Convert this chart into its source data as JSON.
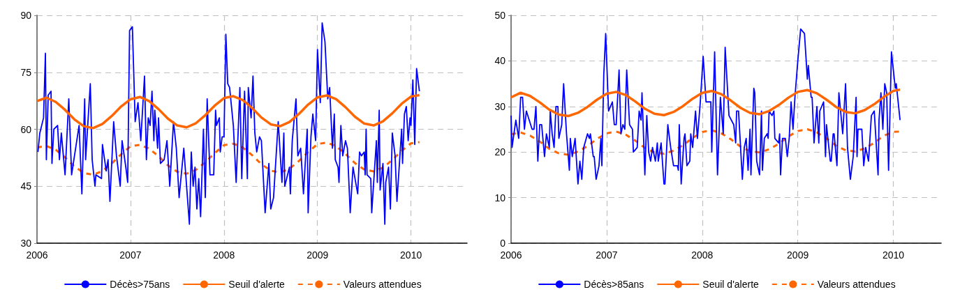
{
  "chart_data": [
    {
      "type": "line",
      "xlim": [
        2006,
        2010.6
      ],
      "xticks": [
        2006,
        2007,
        2008,
        2009,
        2010
      ],
      "ylim": [
        30,
        90
      ],
      "yticks": [
        30,
        45,
        60,
        75,
        90
      ],
      "grid": true,
      "legend": "bottom",
      "marker": "none",
      "series": [
        {
          "name": "Décès>75ans",
          "color": "#0000ff",
          "line_style": "solid",
          "x": [
            2006.01,
            2006.03,
            2006.07,
            2006.09,
            2006.1,
            2006.12,
            2006.15,
            2006.16,
            2006.18,
            2006.22,
            2006.24,
            2006.26,
            2006.3,
            2006.34,
            2006.37,
            2006.45,
            2006.48,
            2006.51,
            2006.52,
            2006.57,
            2006.59,
            2006.62,
            2006.63,
            2006.69,
            2006.7,
            2006.74,
            2006.76,
            2006.78,
            2006.82,
            2006.85,
            2006.89,
            2006.91,
            2006.95,
            2006.97,
            2006.99,
            2007.02,
            2007.05,
            2007.08,
            2007.11,
            2007.15,
            2007.17,
            2007.19,
            2007.21,
            2007.23,
            2007.25,
            2007.26,
            2007.29,
            2007.3,
            2007.32,
            2007.36,
            2007.39,
            2007.42,
            2007.46,
            2007.49,
            2007.52,
            2007.57,
            2007.63,
            2007.65,
            2007.67,
            2007.69,
            2007.71,
            2007.73,
            2007.75,
            2007.78,
            2007.8,
            2007.82,
            2007.85,
            2007.89,
            2007.91,
            2007.92,
            2007.95,
            2007.96,
            2007.98,
            2008.0,
            2008.02,
            2008.04,
            2008.06,
            2008.1,
            2008.13,
            2008.17,
            2008.19,
            2008.22,
            2008.25,
            2008.26,
            2008.29,
            2008.31,
            2008.33,
            2008.35,
            2008.38,
            2008.4,
            2008.44,
            2008.48,
            2008.5,
            2008.53,
            2008.58,
            2008.62,
            2008.64,
            2008.65,
            2008.7,
            2008.71,
            2008.73,
            2008.77,
            2008.79,
            2008.82,
            2008.85,
            2008.89,
            2008.9,
            2008.93,
            2008.95,
            2008.98,
            2009.0,
            2009.03,
            2009.05,
            2009.08,
            2009.11,
            2009.13,
            2009.16,
            2009.18,
            2009.19,
            2009.22,
            2009.23,
            2009.25,
            2009.27,
            2009.3,
            2009.32,
            2009.35,
            2009.38,
            2009.43,
            2009.45,
            2009.47,
            2009.5,
            2009.51,
            2009.52,
            2009.53,
            2009.57,
            2009.58,
            2009.63,
            2009.64,
            2009.66,
            2009.67,
            2009.7,
            2009.72,
            2009.73,
            2009.76,
            2009.78,
            2009.8,
            2009.83,
            2009.85,
            2009.9,
            2009.91,
            2009.93,
            2009.95,
            2009.97,
            2009.99,
            2010.0,
            2010.02,
            2010.04,
            2010.06,
            2010.09
          ],
          "values": [
            54,
            59,
            63,
            80,
            52,
            69,
            70,
            51,
            60,
            61,
            52,
            59,
            48,
            68,
            48,
            61,
            43,
            68,
            52,
            72,
            52,
            45,
            48,
            47,
            56,
            49,
            52,
            41,
            62,
            53,
            45,
            57,
            50,
            46,
            86,
            87,
            62,
            67,
            57,
            74,
            52,
            63,
            61,
            70,
            57,
            65,
            55,
            63,
            51,
            52,
            57,
            45,
            62,
            55,
            42,
            55,
            35,
            54,
            45,
            50,
            39,
            47,
            37,
            60,
            42,
            68,
            48,
            48,
            65,
            61,
            63,
            54,
            58,
            58,
            85,
            72,
            71,
            61,
            46,
            71,
            47,
            70,
            47,
            71,
            63,
            74,
            59,
            54,
            58,
            57,
            38,
            51,
            39,
            42,
            62,
            46,
            59,
            45,
            50,
            43,
            57,
            68,
            53,
            55,
            43,
            60,
            38,
            58,
            64,
            57,
            81,
            67,
            88,
            83,
            68,
            71,
            55,
            64,
            52,
            50,
            46,
            61,
            53,
            57,
            55,
            38,
            50,
            43,
            54,
            53,
            54,
            48,
            60,
            48,
            47,
            38,
            57,
            46,
            65,
            44,
            51,
            35,
            46,
            50,
            39,
            59,
            53,
            41,
            60,
            51,
            64,
            66,
            57,
            63,
            61,
            73,
            56,
            76,
            70
          ]
        },
        {
          "name": "Seuil d'alerte",
          "color": "#ff6600",
          "line_style": "solid",
          "x": [
            2006.0,
            2006.1,
            2006.2,
            2006.3,
            2006.4,
            2006.5,
            2006.6,
            2006.7,
            2006.8,
            2006.9,
            2007.0,
            2007.1,
            2007.2,
            2007.3,
            2007.4,
            2007.5,
            2007.6,
            2007.7,
            2007.8,
            2007.9,
            2008.0,
            2008.1,
            2008.2,
            2008.3,
            2008.4,
            2008.5,
            2008.6,
            2008.7,
            2008.8,
            2008.9,
            2009.0,
            2009.1,
            2009.2,
            2009.3,
            2009.4,
            2009.5,
            2009.6,
            2009.7,
            2009.8,
            2009.9,
            2010.0,
            2010.09
          ],
          "values": [
            67.4,
            68.3,
            67.2,
            65.1,
            62.6,
            60.8,
            60.3,
            61.4,
            63.5,
            66.0,
            67.9,
            68.5,
            67.4,
            65.3,
            62.8,
            61.0,
            60.5,
            61.6,
            63.7,
            66.2,
            68.2,
            68.7,
            67.7,
            65.6,
            63.1,
            61.3,
            60.8,
            61.9,
            64.0,
            66.5,
            68.4,
            68.9,
            67.9,
            65.8,
            63.3,
            61.5,
            61.0,
            62.1,
            64.2,
            66.7,
            68.6,
            69.0
          ]
        },
        {
          "name": "Valeurs attendues",
          "color": "#ff6600",
          "line_style": "dashed",
          "x": [
            2006.0,
            2006.1,
            2006.2,
            2006.3,
            2006.4,
            2006.5,
            2006.6,
            2006.7,
            2006.8,
            2006.9,
            2007.0,
            2007.1,
            2007.2,
            2007.3,
            2007.4,
            2007.5,
            2007.6,
            2007.7,
            2007.8,
            2007.9,
            2008.0,
            2008.1,
            2008.2,
            2008.3,
            2008.4,
            2008.5,
            2008.6,
            2008.7,
            2008.8,
            2008.9,
            2009.0,
            2009.1,
            2009.2,
            2009.3,
            2009.4,
            2009.5,
            2009.6,
            2009.7,
            2009.8,
            2009.9,
            2010.0,
            2010.09
          ],
          "values": [
            55.2,
            55.6,
            54.6,
            52.6,
            50.2,
            48.5,
            48.0,
            49.0,
            51.0,
            53.4,
            55.5,
            55.9,
            54.9,
            52.9,
            50.5,
            48.8,
            48.3,
            49.3,
            51.3,
            53.7,
            55.8,
            56.2,
            55.2,
            53.2,
            50.8,
            49.1,
            48.6,
            49.6,
            51.6,
            54.0,
            56.1,
            56.5,
            55.5,
            53.5,
            51.1,
            49.4,
            48.9,
            49.9,
            51.9,
            54.3,
            56.3,
            56.6
          ]
        }
      ]
    },
    {
      "type": "line",
      "xlim": [
        2006,
        2010.5
      ],
      "xticks": [
        2006,
        2007,
        2008,
        2009,
        2010
      ],
      "ylim": [
        0,
        50
      ],
      "yticks": [
        0,
        10,
        20,
        30,
        40,
        50
      ],
      "grid": true,
      "legend": "bottom",
      "marker": "none",
      "series": [
        {
          "name": "Décès>85ans",
          "color": "#0000ff",
          "line_style": "solid",
          "x": [
            2006.0,
            2006.01,
            2006.05,
            2006.08,
            2006.1,
            2006.12,
            2006.14,
            2006.16,
            2006.19,
            2006.22,
            2006.24,
            2006.26,
            2006.28,
            2006.3,
            2006.32,
            2006.35,
            2006.37,
            2006.4,
            2006.41,
            2006.43,
            2006.45,
            2006.47,
            2006.49,
            2006.5,
            2006.53,
            2006.55,
            2006.58,
            2006.61,
            2006.62,
            2006.64,
            2006.67,
            2006.7,
            2006.72,
            2006.74,
            2006.76,
            2006.8,
            2006.82,
            2006.83,
            2006.86,
            2006.87,
            2006.89,
            2006.92,
            2006.94,
            2006.95,
            2006.97,
            2006.99,
            2007.02,
            2007.06,
            2007.08,
            2007.1,
            2007.13,
            2007.15,
            2007.17,
            2007.19,
            2007.21,
            2007.24,
            2007.27,
            2007.28,
            2007.32,
            2007.34,
            2007.36,
            2007.37,
            2007.4,
            2007.42,
            2007.44,
            2007.46,
            2007.48,
            2007.51,
            2007.53,
            2007.54,
            2007.57,
            2007.6,
            2007.61,
            2007.64,
            2007.67,
            2007.7,
            2007.74,
            2007.75,
            2007.76,
            2007.78,
            2007.81,
            2007.82,
            2007.84,
            2007.87,
            2007.88,
            2007.9,
            2007.93,
            2007.95,
            2007.98,
            2008.01,
            2008.04,
            2008.07,
            2008.09,
            2008.1,
            2008.13,
            2008.16,
            2008.19,
            2008.22,
            2008.24,
            2008.28,
            2008.33,
            2008.35,
            2008.36,
            2008.38,
            2008.42,
            2008.44,
            2008.46,
            2008.48,
            2008.5,
            2008.51,
            2008.54,
            2008.55,
            2008.57,
            2008.6,
            2008.62,
            2008.63,
            2008.65,
            2008.68,
            2008.69,
            2008.7,
            2008.73,
            2008.75,
            2008.76,
            2008.8,
            2008.81,
            2008.82,
            2008.84,
            2008.87,
            2008.89,
            2008.91,
            2008.93,
            2008.95,
            2008.97,
            2009.0,
            2009.03,
            2009.07,
            2009.1,
            2009.11,
            2009.14,
            2009.15,
            2009.17,
            2009.2,
            2009.22,
            2009.23,
            2009.27,
            2009.29,
            2009.3,
            2009.34,
            2009.35,
            2009.37,
            2009.38,
            2009.41,
            2009.43,
            2009.47,
            2009.5,
            2009.52,
            2009.55,
            2009.58,
            2009.61,
            2009.62,
            2009.63,
            2009.67,
            2009.69,
            2009.71,
            2009.74,
            2009.77,
            2009.8,
            2009.84,
            2009.85,
            2009.87,
            2009.89,
            2009.91,
            2009.93,
            2009.95,
            2009.98,
            2010.02,
            2010.03,
            2010.07
          ],
          "values": [
            28,
            21,
            27,
            23,
            32,
            32,
            25,
            29,
            27,
            25,
            25,
            30,
            18,
            26,
            26,
            19,
            24,
            21,
            29,
            24,
            21,
            30,
            30,
            23,
            26,
            35,
            24,
            16,
            23,
            19,
            23,
            13,
            18,
            14,
            21,
            24,
            23,
            24,
            19,
            19,
            14,
            17,
            23,
            17,
            37,
            46,
            29,
            31,
            26,
            26,
            38,
            24,
            26,
            25,
            38,
            26,
            25,
            20,
            21,
            29,
            27,
            33,
            15,
            28,
            20,
            18,
            21,
            18,
            22,
            18,
            22,
            13,
            13,
            26,
            21,
            17,
            17,
            16,
            26,
            13,
            23,
            24,
            17,
            18,
            24,
            21,
            29,
            23,
            31,
            41,
            31,
            31,
            31,
            20,
            42,
            15,
            32,
            24,
            43,
            28,
            26,
            22,
            29,
            29,
            14,
            21,
            23,
            16,
            25,
            15,
            34,
            33,
            18,
            15,
            29,
            16,
            23,
            24,
            23,
            29,
            28,
            29,
            23,
            22,
            24,
            15,
            23,
            23,
            19,
            23,
            31,
            25,
            32,
            40,
            47,
            46,
            36,
            39,
            32,
            32,
            22,
            30,
            22,
            29,
            31,
            19,
            26,
            18,
            18,
            24,
            24,
            17,
            33,
            24,
            35,
            21,
            14,
            19,
            32,
            19,
            25,
            25,
            17,
            21,
            18,
            28,
            29,
            15,
            27,
            33,
            25,
            35,
            33,
            16,
            42,
            34,
            35,
            27
          ]
        },
        {
          "name": "Seuil d'alerte",
          "color": "#ff6600",
          "line_style": "solid",
          "x": [
            2006.0,
            2006.1,
            2006.2,
            2006.3,
            2006.4,
            2006.5,
            2006.6,
            2006.7,
            2006.8,
            2006.9,
            2007.0,
            2007.1,
            2007.2,
            2007.3,
            2007.4,
            2007.5,
            2007.6,
            2007.7,
            2007.8,
            2007.9,
            2008.0,
            2008.1,
            2008.2,
            2008.3,
            2008.4,
            2008.5,
            2008.6,
            2008.7,
            2008.8,
            2008.9,
            2009.0,
            2009.1,
            2009.2,
            2009.3,
            2009.4,
            2009.5,
            2009.6,
            2009.7,
            2009.8,
            2009.9,
            2010.0,
            2010.07
          ],
          "values": [
            32.0,
            33.0,
            32.3,
            30.9,
            29.3,
            28.2,
            27.9,
            28.6,
            29.9,
            31.5,
            32.8,
            33.2,
            32.5,
            31.1,
            29.5,
            28.4,
            28.1,
            28.8,
            30.1,
            31.7,
            33.0,
            33.4,
            32.7,
            31.3,
            29.7,
            28.6,
            28.3,
            29.0,
            30.3,
            31.9,
            33.2,
            33.6,
            32.9,
            31.5,
            29.9,
            28.8,
            28.5,
            29.2,
            30.5,
            32.1,
            33.4,
            33.7
          ]
        },
        {
          "name": "Valeurs attendues",
          "color": "#ff6600",
          "line_style": "dashed",
          "x": [
            2006.0,
            2006.1,
            2006.2,
            2006.3,
            2006.4,
            2006.5,
            2006.6,
            2006.7,
            2006.8,
            2006.9,
            2007.0,
            2007.1,
            2007.2,
            2007.3,
            2007.4,
            2007.5,
            2007.6,
            2007.7,
            2007.8,
            2007.9,
            2008.0,
            2008.1,
            2008.2,
            2008.3,
            2008.4,
            2008.5,
            2008.6,
            2008.7,
            2008.8,
            2008.9,
            2009.0,
            2009.1,
            2009.2,
            2009.3,
            2009.4,
            2009.5,
            2009.6,
            2009.7,
            2009.8,
            2009.9,
            2010.0,
            2010.07
          ],
          "values": [
            23.9,
            24.3,
            23.6,
            22.3,
            20.7,
            19.7,
            19.4,
            20.1,
            21.3,
            22.9,
            24.1,
            24.5,
            23.8,
            22.5,
            20.9,
            19.9,
            19.6,
            20.3,
            21.5,
            23.1,
            24.4,
            24.8,
            24.1,
            22.8,
            21.2,
            20.2,
            19.9,
            20.6,
            21.8,
            23.4,
            24.6,
            25.0,
            24.3,
            23.0,
            21.4,
            20.4,
            20.1,
            20.8,
            22.0,
            23.6,
            24.4,
            24.5
          ]
        }
      ]
    }
  ]
}
